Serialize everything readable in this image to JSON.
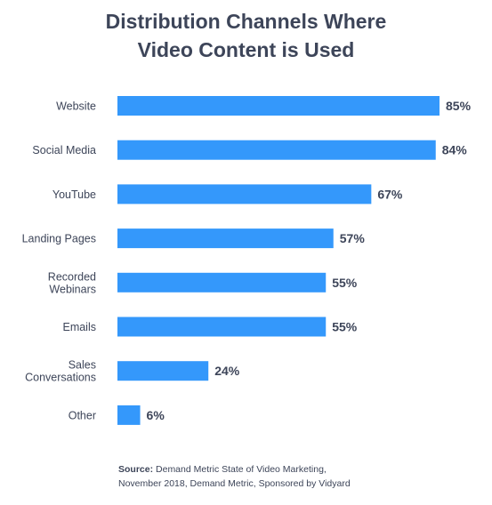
{
  "title_lines": [
    "Distribution Channels Where",
    "Video Content is Used"
  ],
  "source": {
    "label": "Source:",
    "line1": "Demand Metric State of Video Marketing,",
    "line2": "November 2018, Demand Metric, Sponsored by Vidyard"
  },
  "colors": {
    "bar": "#3498fb",
    "text": "#3d4559"
  },
  "chart_data": {
    "type": "bar",
    "orientation": "horizontal",
    "title": "Distribution Channels Where Video Content is Used",
    "xlabel": "",
    "ylabel": "",
    "categories": [
      [
        "Website"
      ],
      [
        "Social Media"
      ],
      [
        "YouTube"
      ],
      [
        "Landing Pages"
      ],
      [
        "Recorded",
        "Webinars"
      ],
      [
        "Emails"
      ],
      [
        "Sales",
        "Conversations"
      ],
      [
        "Other"
      ]
    ],
    "values": [
      85,
      84,
      67,
      57,
      55,
      55,
      24,
      6
    ],
    "value_labels": [
      "85%",
      "84%",
      "67%",
      "57%",
      "55%",
      "55%",
      "24%",
      "6%"
    ],
    "xlim": [
      0,
      85
    ],
    "grid": false,
    "legend": "none"
  }
}
